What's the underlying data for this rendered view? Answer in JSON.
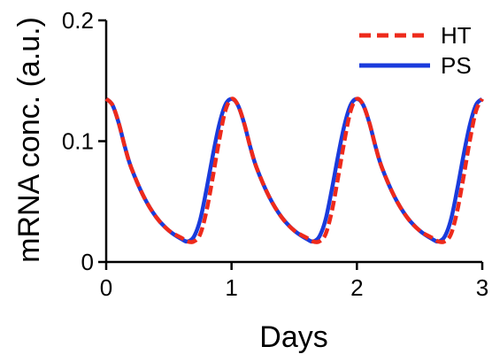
{
  "chart_data": {
    "type": "line",
    "xlabel": "Days",
    "ylabel": "mRNA conc. (a.u.)",
    "xlim": [
      0,
      3
    ],
    "ylim": [
      0,
      0.2
    ],
    "x_ticks": [
      "0",
      "1",
      "2",
      "3"
    ],
    "y_ticks": [
      "0",
      "0.1",
      "0.2"
    ],
    "grid": false,
    "legend_position": "top-right",
    "series": [
      {
        "name": "PS",
        "color": "#1a3bdc",
        "style": "solid",
        "x": [
          0.0,
          0.05,
          0.1,
          0.15,
          0.2,
          0.3,
          0.4,
          0.5,
          0.6,
          0.65,
          0.7,
          0.75,
          0.8,
          0.85,
          0.9,
          0.95,
          1.0,
          1.05,
          1.1,
          1.15,
          1.2,
          1.3,
          1.4,
          1.5,
          1.6,
          1.65,
          1.7,
          1.75,
          1.8,
          1.85,
          1.9,
          1.95,
          2.0,
          2.05,
          2.1,
          2.15,
          2.2,
          2.3,
          2.4,
          2.5,
          2.6,
          2.65,
          2.7,
          2.75,
          2.8,
          2.85,
          2.9,
          2.95,
          3.0
        ],
        "values": [
          0.135,
          0.13,
          0.115,
          0.095,
          0.078,
          0.054,
          0.037,
          0.026,
          0.019,
          0.017,
          0.021,
          0.035,
          0.06,
          0.088,
          0.113,
          0.13,
          0.135,
          0.13,
          0.115,
          0.095,
          0.078,
          0.054,
          0.037,
          0.026,
          0.019,
          0.017,
          0.021,
          0.035,
          0.06,
          0.088,
          0.113,
          0.13,
          0.135,
          0.13,
          0.115,
          0.095,
          0.078,
          0.054,
          0.037,
          0.026,
          0.019,
          0.017,
          0.021,
          0.035,
          0.06,
          0.088,
          0.113,
          0.13,
          0.135
        ]
      },
      {
        "name": "HT",
        "color": "#ee2a1b",
        "style": "dashed",
        "x": [
          0.0,
          0.05,
          0.1,
          0.15,
          0.2,
          0.3,
          0.4,
          0.5,
          0.6,
          0.65,
          0.7,
          0.75,
          0.8,
          0.85,
          0.9,
          0.95,
          1.0,
          1.05,
          1.1,
          1.15,
          1.2,
          1.3,
          1.4,
          1.5,
          1.6,
          1.65,
          1.7,
          1.75,
          1.8,
          1.85,
          1.9,
          1.95,
          2.0,
          2.05,
          2.1,
          2.15,
          2.2,
          2.3,
          2.4,
          2.5,
          2.6,
          2.65,
          2.7,
          2.75,
          2.8,
          2.85,
          2.9,
          2.95,
          3.0
        ],
        "values": [
          0.135,
          0.13,
          0.115,
          0.095,
          0.078,
          0.054,
          0.037,
          0.026,
          0.02,
          0.017,
          0.017,
          0.023,
          0.042,
          0.07,
          0.1,
          0.125,
          0.135,
          0.13,
          0.115,
          0.095,
          0.078,
          0.054,
          0.037,
          0.026,
          0.02,
          0.017,
          0.017,
          0.023,
          0.042,
          0.07,
          0.1,
          0.125,
          0.135,
          0.13,
          0.115,
          0.095,
          0.078,
          0.054,
          0.037,
          0.026,
          0.02,
          0.017,
          0.017,
          0.023,
          0.042,
          0.07,
          0.1,
          0.125,
          0.135
        ]
      }
    ],
    "legend": [
      {
        "label": "HT",
        "series": "HT"
      },
      {
        "label": "PS",
        "series": "PS"
      }
    ]
  }
}
